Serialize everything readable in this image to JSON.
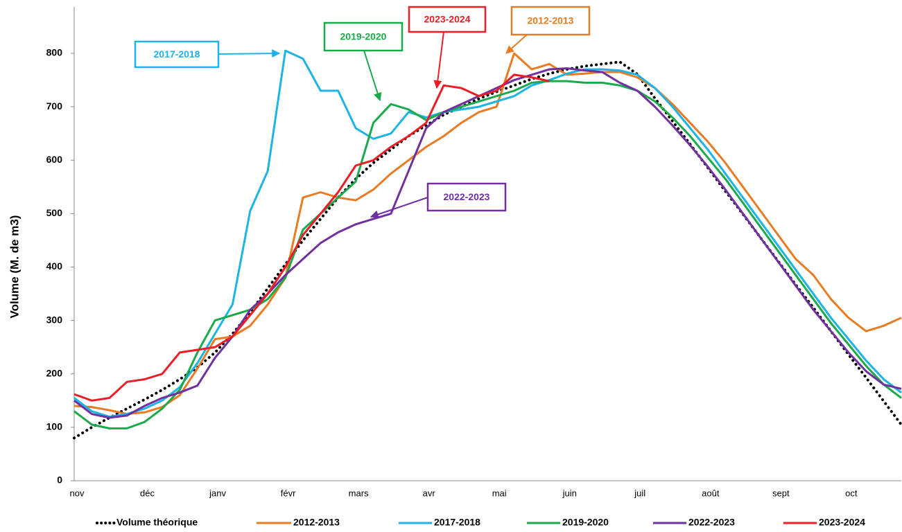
{
  "chart_data": {
    "type": "line",
    "y_label": "Volume (M. de m3)",
    "categories": [
      "nov",
      null,
      null,
      null,
      "déc",
      null,
      null,
      null,
      "janv",
      null,
      null,
      null,
      "févr",
      null,
      null,
      null,
      "mars",
      null,
      null,
      null,
      "avr",
      null,
      null,
      null,
      "mai",
      null,
      null,
      null,
      "juin",
      null,
      null,
      null,
      "juil",
      null,
      null,
      null,
      "août",
      null,
      null,
      null,
      "sept",
      null,
      null,
      null,
      "oct",
      null,
      null,
      null
    ],
    "ylim": [
      0,
      800
    ],
    "yticks": [
      0,
      100,
      200,
      300,
      400,
      500,
      600,
      700,
      800
    ],
    "grid": false,
    "legend": "bottom",
    "series": [
      {
        "name": "Volume théorique",
        "color": "#000000",
        "style": "dotted",
        "values": [
          80,
          100,
          118,
          135,
          152,
          170,
          190,
          212,
          240,
          275,
          315,
          360,
          405,
          450,
          490,
          530,
          565,
          595,
          620,
          645,
          665,
          685,
          700,
          715,
          728,
          740,
          752,
          762,
          770,
          776,
          780,
          784,
          761,
          716,
          673,
          630,
          586,
          542,
          499,
          455,
          411,
          367,
          324,
          280,
          236,
          193,
          149,
          105
        ]
      },
      {
        "name": "2012-2013",
        "color": "#e97b22",
        "values": [
          140,
          138,
          132,
          125,
          128,
          138,
          160,
          210,
          265,
          270,
          290,
          330,
          380,
          530,
          540,
          530,
          525,
          545,
          575,
          600,
          625,
          645,
          670,
          690,
          700,
          800,
          770,
          780,
          760,
          762,
          765,
          765,
          755,
          735,
          705,
          670,
          635,
          595,
          550,
          505,
          460,
          415,
          385,
          340,
          305,
          280,
          290,
          305
        ]
      },
      {
        "name": "2017-2018",
        "color": "#1cb3e6",
        "values": [
          155,
          130,
          120,
          125,
          135,
          150,
          175,
          220,
          275,
          330,
          505,
          580,
          805,
          790,
          730,
          730,
          660,
          640,
          650,
          690,
          680,
          690,
          695,
          700,
          710,
          720,
          740,
          750,
          762,
          770,
          770,
          768,
          760,
          735,
          700,
          660,
          620,
          575,
          530,
          485,
          440,
          395,
          350,
          305,
          265,
          225,
          190,
          165
        ]
      },
      {
        "name": "2019-2020",
        "color": "#1aaa4b",
        "values": [
          130,
          105,
          98,
          98,
          110,
          135,
          170,
          240,
          300,
          310,
          320,
          340,
          380,
          470,
          500,
          530,
          560,
          670,
          705,
          695,
          675,
          690,
          700,
          710,
          720,
          730,
          745,
          748,
          748,
          745,
          745,
          740,
          730,
          710,
          680,
          645,
          605,
          565,
          520,
          475,
          430,
          385,
          340,
          295,
          255,
          215,
          180,
          155
        ]
      },
      {
        "name": "2022-2023",
        "color": "#7030a0",
        "values": [
          150,
          125,
          118,
          122,
          140,
          155,
          165,
          178,
          230,
          270,
          320,
          350,
          385,
          415,
          445,
          465,
          480,
          490,
          500,
          580,
          660,
          690,
          705,
          720,
          735,
          750,
          760,
          770,
          772,
          768,
          765,
          745,
          730,
          700,
          665,
          628,
          588,
          545,
          500,
          455,
          410,
          365,
          320,
          280,
          240,
          205,
          180,
          172
        ]
      },
      {
        "name": "2023-2024",
        "color": "#ee1c25",
        "values": [
          162,
          150,
          155,
          185,
          190,
          200,
          240,
          245,
          250,
          270,
          310,
          350,
          400,
          460,
          500,
          540,
          590,
          600,
          625,
          645,
          670,
          740,
          735,
          720,
          730,
          760,
          755,
          748,
          null,
          null,
          null,
          null,
          null,
          null,
          null,
          null,
          null,
          null,
          null,
          null,
          null,
          null,
          null,
          null,
          null,
          null,
          null,
          null
        ]
      }
    ],
    "annotations": [
      {
        "text": "2017-2018",
        "color": "#1cb3e6"
      },
      {
        "text": "2019-2020",
        "color": "#1aaa4b"
      },
      {
        "text": "2023-2024",
        "color": "#ee1c25"
      },
      {
        "text": "2012-2013",
        "color": "#e97b22"
      },
      {
        "text": "2022-2023",
        "color": "#7030a0"
      }
    ]
  }
}
